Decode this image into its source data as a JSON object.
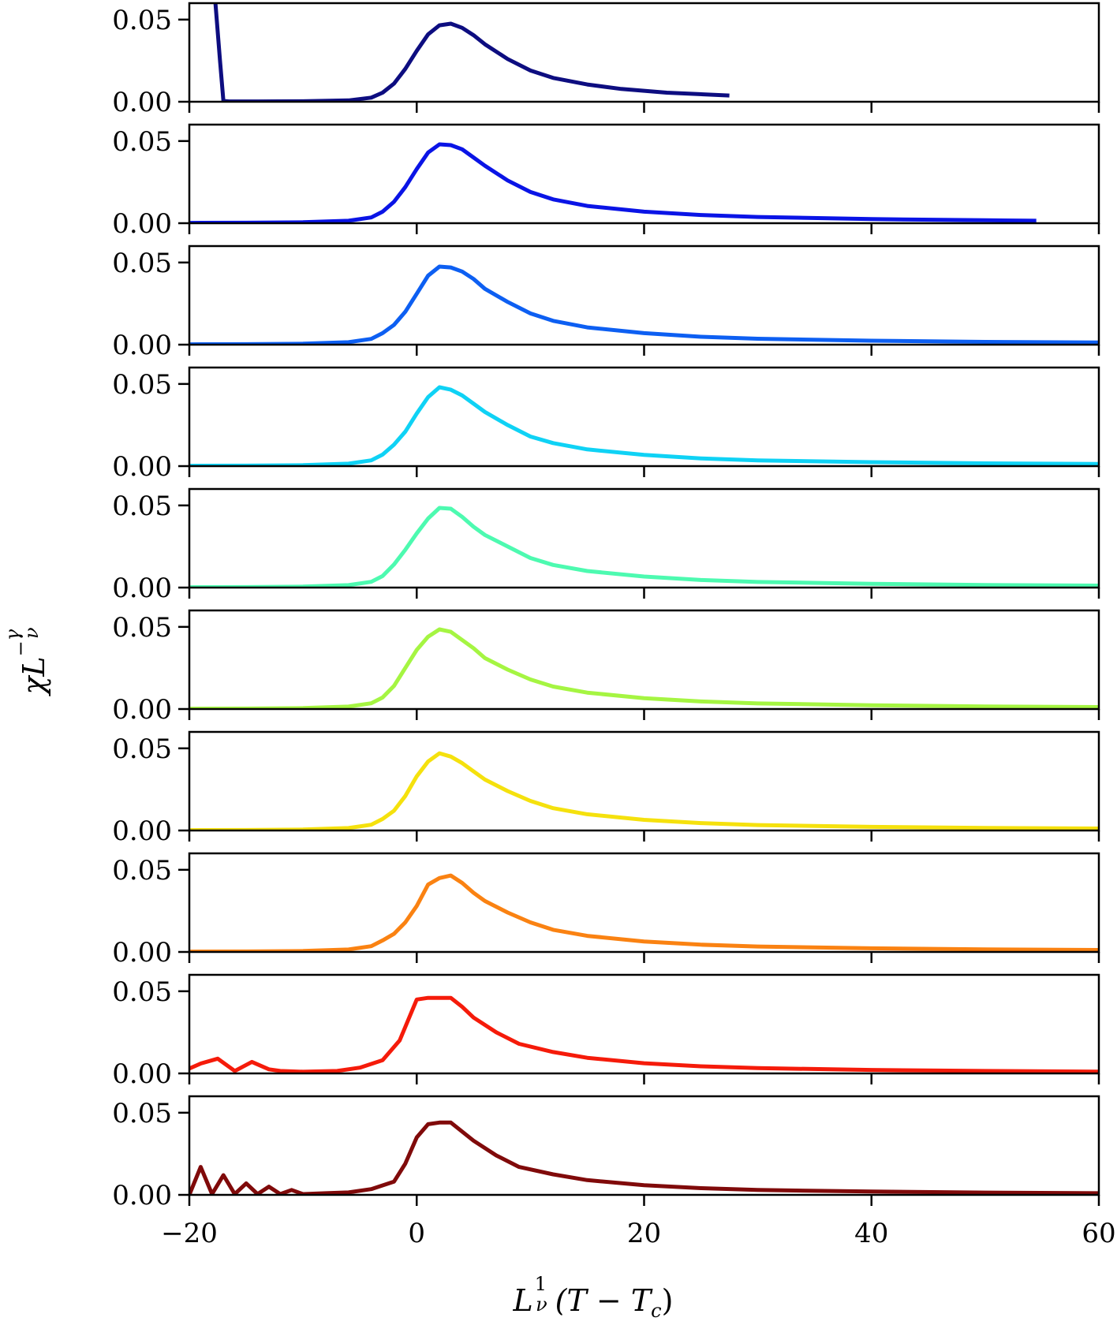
{
  "chart_data": {
    "type": "line",
    "layout": "stacked-panels",
    "shared_x": true,
    "xlim": [
      -20,
      60
    ],
    "ylim": [
      0,
      0.06
    ],
    "xticks": [
      "−20",
      "0",
      "20",
      "40",
      "60"
    ],
    "yticks": [
      "0.00",
      "0.05"
    ],
    "xlabel": {
      "base": "L",
      "superscript_num": "1",
      "superscript_den": "ν",
      "tail": "(T − T",
      "tail_sub": "c",
      "close": ")"
    },
    "ylabel": {
      "base": "χL",
      "superscript_sign": "−",
      "superscript_num": "γ",
      "superscript_den": "ν"
    },
    "grid": false,
    "series": [
      {
        "color": "#0d0d80",
        "x": [
          -17.7,
          -17.3,
          -17.0,
          -16.5,
          -14,
          -10,
          -6,
          -4,
          -3,
          -2,
          -1,
          0,
          1,
          2,
          3,
          4,
          5,
          6,
          8,
          10,
          12,
          15,
          18,
          22,
          27.5
        ],
        "y": [
          0.06,
          0.025,
          0.0005,
          0.0002,
          0.0002,
          0.0003,
          0.0008,
          0.0025,
          0.0055,
          0.011,
          0.02,
          0.031,
          0.041,
          0.0465,
          0.0475,
          0.045,
          0.0405,
          0.035,
          0.026,
          0.019,
          0.0145,
          0.0105,
          0.0078,
          0.0055,
          0.0038
        ]
      },
      {
        "color": "#0a14e6",
        "x": [
          -20,
          -15,
          -10,
          -6,
          -4,
          -3,
          -2,
          -1,
          0,
          1,
          2,
          3,
          4,
          5,
          6,
          8,
          10,
          12,
          15,
          20,
          25,
          30,
          40,
          50,
          54.5
        ],
        "y": [
          0.0002,
          0.0003,
          0.0006,
          0.0015,
          0.0035,
          0.007,
          0.013,
          0.022,
          0.033,
          0.043,
          0.048,
          0.0475,
          0.045,
          0.04,
          0.035,
          0.026,
          0.019,
          0.0145,
          0.0105,
          0.007,
          0.005,
          0.0038,
          0.0025,
          0.0018,
          0.0015
        ]
      },
      {
        "color": "#0d5ff2",
        "x": [
          -20,
          -15,
          -10,
          -6,
          -4,
          -3,
          -2,
          -1,
          0,
          1,
          2,
          3,
          4,
          5,
          6,
          8,
          10,
          12,
          15,
          20,
          25,
          30,
          40,
          50,
          60
        ],
        "y": [
          0.0002,
          0.0003,
          0.0006,
          0.0015,
          0.0035,
          0.007,
          0.012,
          0.02,
          0.031,
          0.042,
          0.0475,
          0.047,
          0.0445,
          0.04,
          0.034,
          0.026,
          0.019,
          0.0145,
          0.0105,
          0.007,
          0.0048,
          0.0036,
          0.0024,
          0.0017,
          0.0013
        ]
      },
      {
        "color": "#0fd2f5",
        "x": [
          -20,
          -15,
          -10,
          -6,
          -4,
          -3,
          -2,
          -1,
          0,
          1,
          2,
          3,
          4,
          5,
          6,
          8,
          10,
          12,
          15,
          20,
          25,
          30,
          40,
          50,
          60
        ],
        "y": [
          0.0002,
          0.0003,
          0.0006,
          0.0015,
          0.0035,
          0.007,
          0.013,
          0.021,
          0.032,
          0.042,
          0.048,
          0.0465,
          0.043,
          0.038,
          0.033,
          0.025,
          0.018,
          0.014,
          0.0102,
          0.0068,
          0.0047,
          0.0035,
          0.0024,
          0.0017,
          0.0013
        ]
      },
      {
        "color": "#4dfab0",
        "x": [
          -20,
          -15,
          -10,
          -6,
          -4,
          -3,
          -2,
          -1,
          0,
          1,
          2,
          3,
          4,
          5,
          6,
          8,
          10,
          12,
          15,
          20,
          25,
          30,
          40,
          50,
          60
        ],
        "y": [
          0.0002,
          0.0003,
          0.0006,
          0.0015,
          0.0035,
          0.007,
          0.014,
          0.023,
          0.033,
          0.042,
          0.0485,
          0.048,
          0.043,
          0.037,
          0.032,
          0.025,
          0.018,
          0.0138,
          0.0101,
          0.0067,
          0.0046,
          0.0034,
          0.0023,
          0.0016,
          0.0012
        ]
      },
      {
        "color": "#a5f542",
        "x": [
          -20,
          -15,
          -10,
          -6,
          -4,
          -3,
          -2,
          -1,
          0,
          1,
          2,
          3,
          4,
          5,
          6,
          8,
          10,
          12,
          15,
          20,
          25,
          30,
          40,
          50,
          60
        ],
        "y": [
          0.0002,
          0.0003,
          0.0006,
          0.0015,
          0.0035,
          0.007,
          0.014,
          0.025,
          0.036,
          0.044,
          0.0485,
          0.047,
          0.042,
          0.037,
          0.031,
          0.024,
          0.018,
          0.0137,
          0.01,
          0.0066,
          0.0046,
          0.0034,
          0.0023,
          0.0016,
          0.0012
        ]
      },
      {
        "color": "#f5e10d",
        "x": [
          -20,
          -15,
          -10,
          -6,
          -4,
          -3,
          -2,
          -1,
          0,
          1,
          2,
          3,
          4,
          5,
          6,
          8,
          10,
          12,
          15,
          20,
          25,
          30,
          40,
          50,
          60
        ],
        "y": [
          0.0002,
          0.0003,
          0.0006,
          0.0015,
          0.0035,
          0.007,
          0.012,
          0.021,
          0.033,
          0.042,
          0.047,
          0.045,
          0.041,
          0.036,
          0.031,
          0.024,
          0.018,
          0.0136,
          0.0099,
          0.0065,
          0.0045,
          0.0033,
          0.0022,
          0.0016,
          0.0012
        ]
      },
      {
        "color": "#fa8212",
        "x": [
          -20,
          -15,
          -10,
          -6,
          -4,
          -3,
          -2,
          -1,
          0,
          1,
          2,
          3,
          4,
          5,
          6,
          8,
          10,
          12,
          15,
          20,
          25,
          30,
          40,
          50,
          60
        ],
        "y": [
          0.0002,
          0.0003,
          0.0006,
          0.0015,
          0.0035,
          0.007,
          0.011,
          0.018,
          0.028,
          0.041,
          0.045,
          0.0465,
          0.042,
          0.036,
          0.031,
          0.024,
          0.018,
          0.0135,
          0.0098,
          0.0064,
          0.0044,
          0.0033,
          0.0022,
          0.0016,
          0.0012
        ]
      },
      {
        "color": "#f51b0a",
        "x": [
          -20,
          -19,
          -17.5,
          -16,
          -14.5,
          -13,
          -12,
          -10,
          -7,
          -5,
          -3,
          -1.5,
          0,
          1,
          3,
          4,
          5,
          7,
          9,
          12,
          15,
          20,
          25,
          30,
          40,
          50,
          60
        ],
        "y": [
          0.003,
          0.006,
          0.009,
          0.0015,
          0.007,
          0.0025,
          0.0015,
          0.001,
          0.0015,
          0.0035,
          0.008,
          0.02,
          0.045,
          0.046,
          0.046,
          0.0405,
          0.034,
          0.025,
          0.018,
          0.013,
          0.0095,
          0.0062,
          0.0043,
          0.0032,
          0.0021,
          0.0015,
          0.0011
        ]
      },
      {
        "color": "#800a0a",
        "x": [
          -20,
          -19,
          -18,
          -17,
          -16,
          -15,
          -14,
          -13,
          -12,
          -11,
          -10,
          -8,
          -6,
          -4,
          -2,
          -1,
          0,
          1,
          2,
          3,
          4,
          5,
          7,
          9,
          12,
          15,
          20,
          25,
          30,
          40,
          50,
          60
        ],
        "y": [
          0.0,
          0.017,
          0.0005,
          0.012,
          0.0005,
          0.007,
          0.0005,
          0.005,
          0.0005,
          0.003,
          0.0005,
          0.001,
          0.0015,
          0.0035,
          0.008,
          0.019,
          0.035,
          0.043,
          0.044,
          0.044,
          0.0385,
          0.033,
          0.024,
          0.017,
          0.0125,
          0.009,
          0.0059,
          0.0041,
          0.003,
          0.002,
          0.0014,
          0.001
        ]
      }
    ]
  }
}
